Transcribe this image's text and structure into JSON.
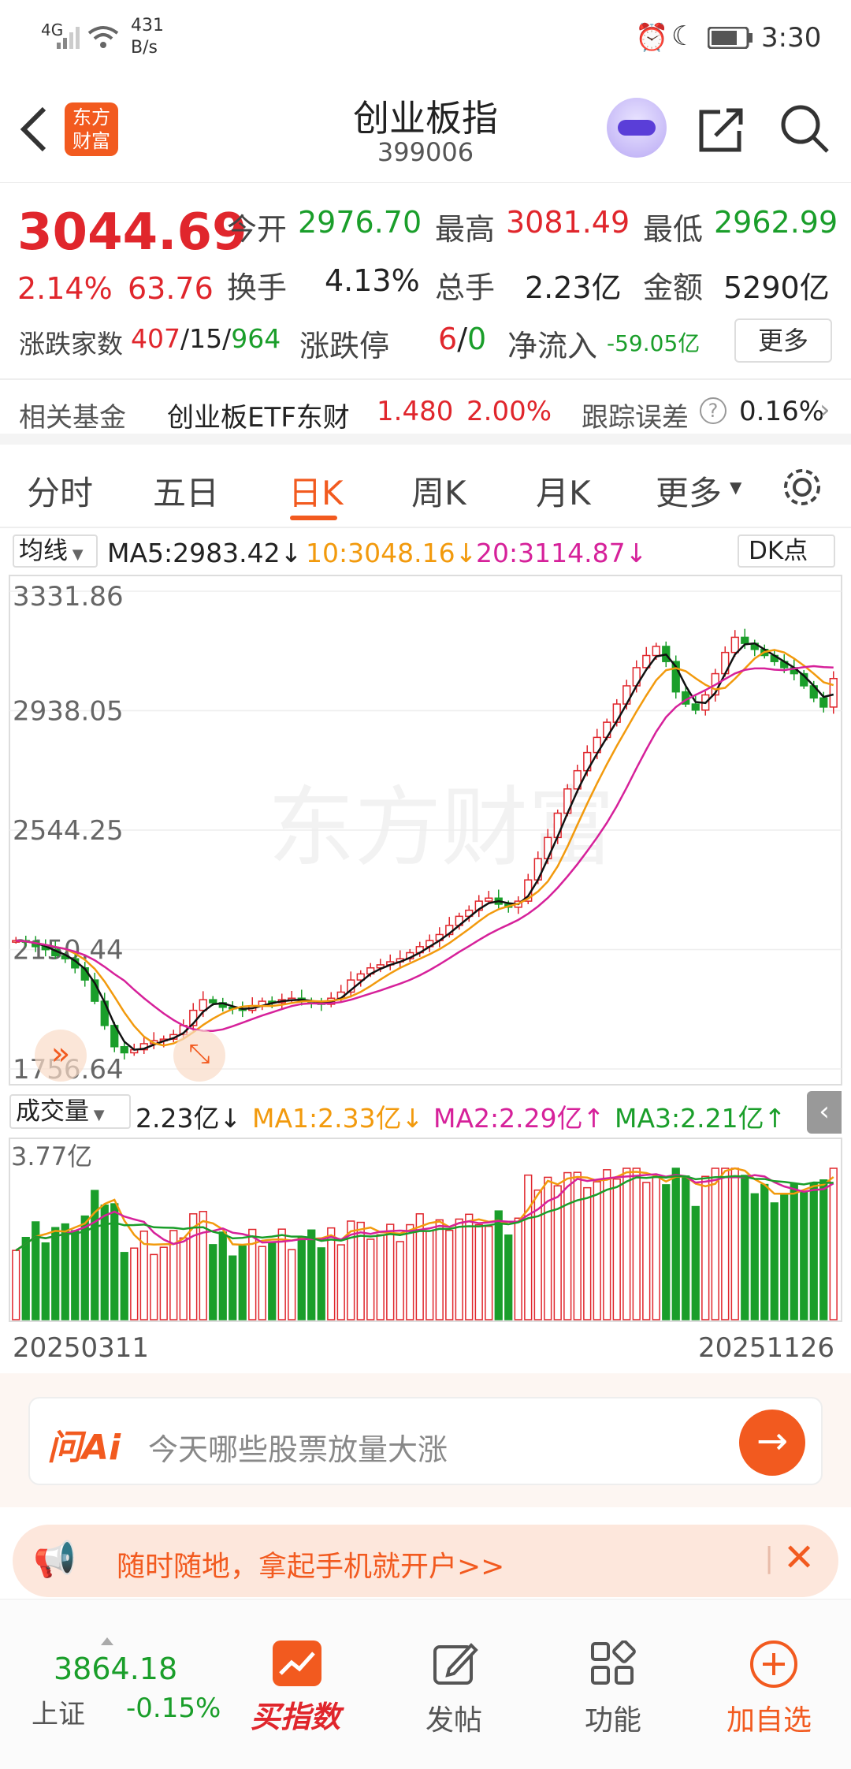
{
  "status": {
    "signal": "4G",
    "speed_top": "431",
    "speed_bottom": "B/s",
    "time": "3:30"
  },
  "header": {
    "logo_line1": "东方",
    "logo_line2": "财富",
    "title": "创业板指",
    "code": "399006"
  },
  "quote": {
    "price": "3044.69",
    "change_pct": "2.14%",
    "change": "63.76",
    "open_label": "今开",
    "open": "2976.70",
    "high_label": "最高",
    "high": "3081.49",
    "low_label": "最低",
    "low": "2962.99",
    "turnover_label": "换手",
    "turnover": "4.13%",
    "volume_label": "总手",
    "volume": "2.23亿",
    "amount_label": "金额",
    "amount": "5290亿",
    "updown_label": "涨跌家数",
    "up": "407",
    "flat": "15",
    "down": "964",
    "limit_label": "涨跌停",
    "limit_up": "6",
    "limit_down": "0",
    "netflow_label": "净流入",
    "netflow": "-59.05亿",
    "more_button": "更多"
  },
  "fund": {
    "label": "相关基金",
    "name": "创业板ETF东财",
    "price": "1.480",
    "pct": "2.00%",
    "error_label": "跟踪误差",
    "error_value": "0.16%"
  },
  "tabs": [
    "分时",
    "五日",
    "日K",
    "周K",
    "月K",
    "更多"
  ],
  "kline": {
    "ma_label": "均线",
    "ma5": "MA5:2983.42↓",
    "ma10": "10:3048.16↓",
    "ma20": "20:3114.87↓",
    "dk_label": "DK点",
    "y_labels": [
      "3331.86",
      "2938.05",
      "2544.25",
      "2150.44",
      "1756.64"
    ],
    "watermark": "东方财富"
  },
  "volume": {
    "label": "成交量",
    "value": "2.23亿↓",
    "ma1": "MA1:2.33亿↓",
    "ma2": "MA2:2.29亿↑",
    "ma3": "MA3:2.21亿↑",
    "max_label": "3.77亿",
    "start_date": "20250311",
    "end_date": "20251126"
  },
  "ai": {
    "logo": "问Ai",
    "placeholder": "今天哪些股票放量大涨"
  },
  "promo": {
    "text": "随时随地，拿起手机就开户>>"
  },
  "bottom": {
    "index_value": "3864.18",
    "index_name": "上证",
    "index_pct": "-0.15%",
    "nav": [
      "买指数",
      "发帖",
      "功能",
      "加自选"
    ]
  },
  "chart_data": {
    "type": "candlestick",
    "y_range": [
      1756.64,
      3331.86
    ],
    "x_range": [
      "20250311",
      "20251126"
    ],
    "close": [
      2180,
      2175,
      2160,
      2150,
      2130,
      2120,
      2090,
      2050,
      1980,
      1900,
      1830,
      1810,
      1820,
      1840,
      1850,
      1855,
      1870,
      1900,
      1950,
      1985,
      1975,
      1960,
      1955,
      1950,
      1965,
      1980,
      1975,
      1985,
      1990,
      1980,
      1975,
      1970,
      1990,
      2010,
      2050,
      2070,
      2090,
      2100,
      2110,
      2120,
      2140,
      2160,
      2180,
      2200,
      2230,
      2260,
      2280,
      2310,
      2320,
      2300,
      2290,
      2310,
      2380,
      2450,
      2520,
      2600,
      2680,
      2740,
      2800,
      2850,
      2900,
      2960,
      3020,
      3080,
      3120,
      3150,
      3100,
      3000,
      2960,
      2940,
      2990,
      3060,
      3130,
      3180,
      3160,
      3140,
      3120,
      3100,
      3080,
      3060,
      3020,
      2980,
      2950,
      3044
    ]
  }
}
